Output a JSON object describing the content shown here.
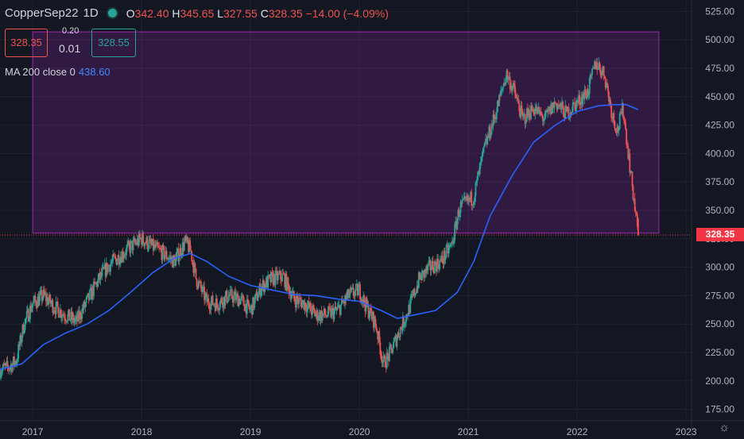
{
  "header": {
    "symbol": "CopperSep22",
    "timeframe": "1D",
    "status_color": "#26a69a",
    "open_label": "O",
    "open": "342.40",
    "high_label": "H",
    "high": "345.65",
    "low_label": "L",
    "low": "327.55",
    "close_label": "C",
    "close": "328.35",
    "change": "−14.00 (−4.09%)"
  },
  "trade": {
    "sell_price": "328.35",
    "spread_top": "0.20",
    "spread": "0.01",
    "buy_price": "328.55"
  },
  "indicator": {
    "label": "MA 200 close 0",
    "value": "438.60",
    "color": "#2962ff"
  },
  "price_tag": "328.35",
  "icons": {
    "settings": "gear-icon"
  },
  "colors": {
    "up": "#26a69a",
    "down": "#ef5350",
    "zone": "#9c27b0",
    "ma": "#2962ff"
  },
  "chart_data": {
    "type": "candlestick",
    "title": "",
    "ylim": [
      165,
      535
    ],
    "xlim": [
      2016.7,
      2023.05
    ],
    "y_ticks": [
      175,
      200,
      225,
      250,
      275,
      300,
      325,
      350,
      375,
      400,
      425,
      450,
      475,
      500,
      525
    ],
    "x_ticks": [
      {
        "x": 2017,
        "label": "2017"
      },
      {
        "x": 2018,
        "label": "2018"
      },
      {
        "x": 2019,
        "label": "2019"
      },
      {
        "x": 2020,
        "label": "2020"
      },
      {
        "x": 2021,
        "label": "2021"
      },
      {
        "x": 2022,
        "label": "2022"
      },
      {
        "x": 2023,
        "label": "2023"
      }
    ],
    "last_price": 328.35,
    "price_path": [
      [
        2016.7,
        210
      ],
      [
        2016.78,
        212
      ],
      [
        2016.85,
        218
      ],
      [
        2016.92,
        250
      ],
      [
        2017.0,
        268
      ],
      [
        2017.1,
        275
      ],
      [
        2017.2,
        265
      ],
      [
        2017.3,
        258
      ],
      [
        2017.4,
        252
      ],
      [
        2017.5,
        270
      ],
      [
        2017.6,
        288
      ],
      [
        2017.7,
        302
      ],
      [
        2017.8,
        310
      ],
      [
        2017.9,
        318
      ],
      [
        2018.0,
        325
      ],
      [
        2018.1,
        318
      ],
      [
        2018.2,
        312
      ],
      [
        2018.3,
        305
      ],
      [
        2018.4,
        322
      ],
      [
        2018.45,
        315
      ],
      [
        2018.5,
        290
      ],
      [
        2018.6,
        270
      ],
      [
        2018.7,
        268
      ],
      [
        2018.8,
        275
      ],
      [
        2018.9,
        272
      ],
      [
        2019.0,
        262
      ],
      [
        2019.1,
        283
      ],
      [
        2019.2,
        290
      ],
      [
        2019.3,
        292
      ],
      [
        2019.4,
        272
      ],
      [
        2019.5,
        268
      ],
      [
        2019.6,
        258
      ],
      [
        2019.7,
        258
      ],
      [
        2019.8,
        262
      ],
      [
        2019.9,
        275
      ],
      [
        2020.0,
        280
      ],
      [
        2020.05,
        268
      ],
      [
        2020.15,
        250
      ],
      [
        2020.22,
        215
      ],
      [
        2020.27,
        222
      ],
      [
        2020.35,
        240
      ],
      [
        2020.45,
        262
      ],
      [
        2020.55,
        290
      ],
      [
        2020.65,
        300
      ],
      [
        2020.75,
        305
      ],
      [
        2020.85,
        320
      ],
      [
        2020.92,
        352
      ],
      [
        2021.0,
        358
      ],
      [
        2021.05,
        362
      ],
      [
        2021.15,
        405
      ],
      [
        2021.25,
        435
      ],
      [
        2021.35,
        470
      ],
      [
        2021.42,
        455
      ],
      [
        2021.5,
        430
      ],
      [
        2021.6,
        440
      ],
      [
        2021.7,
        430
      ],
      [
        2021.8,
        445
      ],
      [
        2021.9,
        435
      ],
      [
        2022.0,
        445
      ],
      [
        2022.1,
        455
      ],
      [
        2022.17,
        480
      ],
      [
        2022.25,
        470
      ],
      [
        2022.32,
        435
      ],
      [
        2022.37,
        420
      ],
      [
        2022.42,
        440
      ],
      [
        2022.47,
        400
      ],
      [
        2022.52,
        360
      ],
      [
        2022.56,
        328.35
      ]
    ],
    "ma200": [
      [
        2016.7,
        210
      ],
      [
        2016.9,
        215
      ],
      [
        2017.1,
        232
      ],
      [
        2017.3,
        242
      ],
      [
        2017.5,
        250
      ],
      [
        2017.7,
        262
      ],
      [
        2017.9,
        278
      ],
      [
        2018.1,
        295
      ],
      [
        2018.3,
        308
      ],
      [
        2018.45,
        312
      ],
      [
        2018.6,
        305
      ],
      [
        2018.8,
        292
      ],
      [
        2019.0,
        284
      ],
      [
        2019.2,
        280
      ],
      [
        2019.4,
        276
      ],
      [
        2019.6,
        275
      ],
      [
        2019.8,
        272
      ],
      [
        2020.0,
        270
      ],
      [
        2020.2,
        262
      ],
      [
        2020.35,
        255
      ],
      [
        2020.5,
        258
      ],
      [
        2020.7,
        262
      ],
      [
        2020.9,
        278
      ],
      [
        2021.05,
        305
      ],
      [
        2021.2,
        345
      ],
      [
        2021.4,
        380
      ],
      [
        2021.6,
        410
      ],
      [
        2021.8,
        425
      ],
      [
        2022.0,
        437
      ],
      [
        2022.2,
        442
      ],
      [
        2022.35,
        443
      ],
      [
        2022.45,
        443
      ],
      [
        2022.56,
        438.6
      ]
    ],
    "zone": {
      "x0": 2017.0,
      "x1": 2022.75,
      "y0": 330,
      "y1": 507
    },
    "series": [
      {
        "name": "MA 200 close 0"
      }
    ]
  }
}
